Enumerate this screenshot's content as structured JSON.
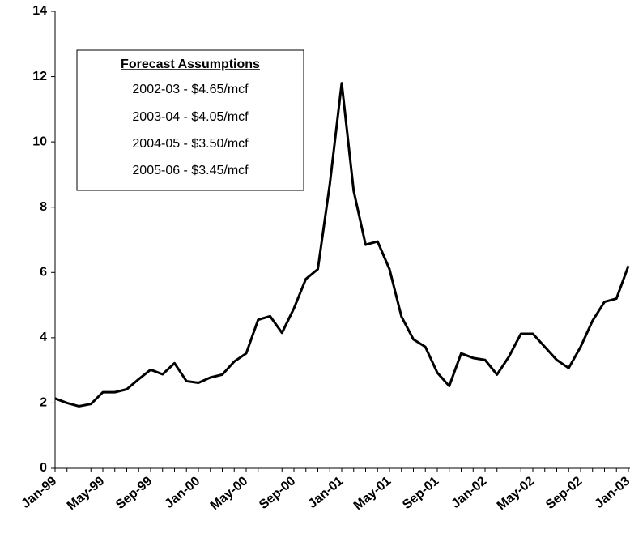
{
  "chart_data": {
    "type": "line",
    "categories": [
      "Jan-99",
      null,
      null,
      null,
      "May-99",
      null,
      null,
      null,
      "Sep-99",
      null,
      null,
      null,
      "Jan-00",
      null,
      null,
      null,
      "May-00",
      null,
      null,
      null,
      "Sep-00",
      null,
      null,
      null,
      "Jan-01",
      null,
      null,
      null,
      "May-01",
      null,
      null,
      null,
      "Sep-01",
      null,
      null,
      null,
      "Jan-02",
      null,
      null,
      null,
      "May-02",
      null,
      null,
      null,
      "Sep-02",
      null,
      null,
      null,
      "Jan-03"
    ],
    "values": [
      2.14,
      2.0,
      1.9,
      1.97,
      2.33,
      2.33,
      2.42,
      2.73,
      3.02,
      2.88,
      3.22,
      2.67,
      2.62,
      2.78,
      2.87,
      3.27,
      3.52,
      4.55,
      4.66,
      4.15,
      4.9,
      5.8,
      6.1,
      8.7,
      11.8,
      8.5,
      6.85,
      6.95,
      6.1,
      4.65,
      3.95,
      3.72,
      2.93,
      2.52,
      3.52,
      3.38,
      3.32,
      2.87,
      3.42,
      4.12,
      4.12,
      3.72,
      3.32,
      3.07,
      3.72,
      4.52,
      5.1,
      5.2,
      6.2
    ],
    "color": "#000000",
    "ylim": [
      0,
      14
    ],
    "yticks": [
      0,
      2,
      4,
      6,
      8,
      10,
      12,
      14
    ],
    "annotation": {
      "title": "Forecast Assumptions",
      "lines": [
        "2002-03 - $4.65/mcf",
        "2003-04 - $4.05/mcf",
        "2004-05 - $3.50/mcf",
        "2005-06 - $3.45/mcf"
      ]
    }
  }
}
